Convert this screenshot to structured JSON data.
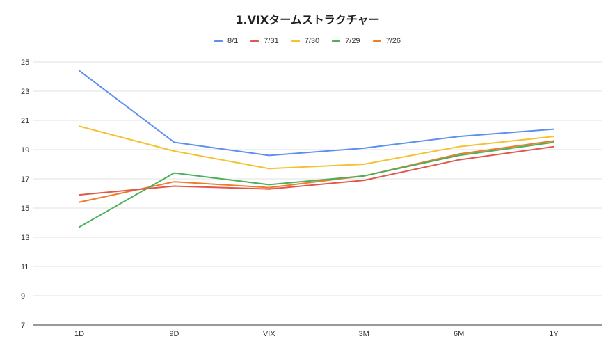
{
  "chart_data": {
    "type": "line",
    "title": "1.VIXタームストラクチャー",
    "xlabel": "",
    "ylabel": "",
    "categories": [
      "1D",
      "9D",
      "VIX",
      "3M",
      "6M",
      "1Y"
    ],
    "ylim": [
      7,
      25
    ],
    "yticks": [
      7,
      9,
      11,
      13,
      15,
      17,
      19,
      21,
      23,
      25
    ],
    "grid": true,
    "legend_position": "top",
    "series": [
      {
        "name": "8/1",
        "color": "#5b8ff0",
        "values": [
          24.4,
          19.5,
          18.6,
          19.1,
          19.9,
          20.4
        ]
      },
      {
        "name": "7/31",
        "color": "#e0584b",
        "values": [
          15.9,
          16.5,
          16.3,
          16.9,
          18.3,
          19.2
        ]
      },
      {
        "name": "7/30",
        "color": "#f5c12e",
        "values": [
          20.6,
          18.9,
          17.7,
          18.0,
          19.2,
          19.9
        ]
      },
      {
        "name": "7/29",
        "color": "#4caf5c",
        "values": [
          13.7,
          17.4,
          16.6,
          17.2,
          18.6,
          19.5
        ]
      },
      {
        "name": "7/26",
        "color": "#f07b2a",
        "values": [
          15.4,
          16.8,
          16.4,
          17.2,
          18.7,
          19.6
        ]
      }
    ]
  }
}
